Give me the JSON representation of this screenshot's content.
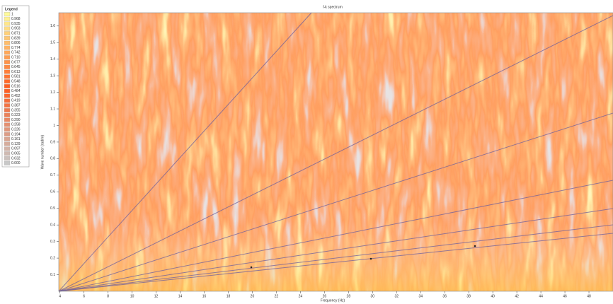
{
  "chart_data": {
    "type": "heatmap",
    "title": "f-k spectrum",
    "x_label": "Frequency (Hz)",
    "y_label": "Wave number (rad/m)",
    "xlim": [
      3.9,
      50
    ],
    "xticks": [
      4,
      6,
      8,
      10,
      12,
      14,
      16,
      18,
      20,
      22,
      24,
      26,
      28,
      30,
      32,
      34,
      36,
      38,
      40,
      42,
      44,
      46,
      48
    ],
    "ylim": [
      0,
      1.68
    ],
    "yticks": [
      0.1,
      0.2,
      0.3,
      0.4,
      0.5,
      0.6,
      0.7,
      0.8,
      0.9,
      1,
      1.1,
      1.2,
      1.3,
      1.4,
      1.5,
      1.6
    ],
    "legend": {
      "title": "Legend",
      "colors": [
        "#fffb9a",
        "#ff5a1e",
        "#c8c8c8"
      ],
      "labels": [
        "1",
        "0.968",
        "0.935",
        "0.903",
        "0.871",
        "0.839",
        "0.806",
        "0.774",
        "0.742",
        "0.710",
        "0.677",
        "0.645",
        "0.613",
        "0.581",
        "0.548",
        "0.516",
        "0.484",
        "0.452",
        "0.419",
        "0.387",
        "0.355",
        "0.323",
        "0.290",
        "0.258",
        "0.226",
        "0.194",
        "0.161",
        "0.129",
        "0.097",
        "0.065",
        "0.032",
        "0.000"
      ]
    }
  }
}
